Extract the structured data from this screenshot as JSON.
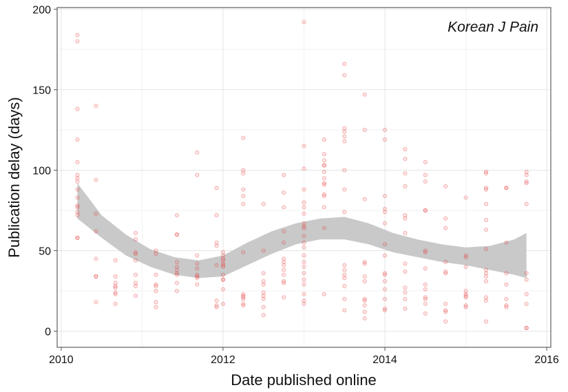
{
  "chart_data": {
    "type": "scatter",
    "annotation": "Korean J Pain",
    "xlabel": "Date published online",
    "ylabel": "Publication delay (days)",
    "xlim": [
      2009.95,
      2016.05
    ],
    "ylim": [
      -10,
      201
    ],
    "x_ticks": [
      2010,
      2012,
      2014,
      2016
    ],
    "y_ticks": [
      0,
      50,
      100,
      150,
      200
    ],
    "grid": true,
    "point_color": "#e8383d",
    "band_color": "#c9c9c9",
    "points": [
      [
        2010.2,
        184
      ],
      [
        2010.2,
        180
      ],
      [
        2010.2,
        138
      ],
      [
        2010.2,
        119
      ],
      [
        2010.2,
        105
      ],
      [
        2010.2,
        97
      ],
      [
        2010.2,
        95
      ],
      [
        2010.2,
        93
      ],
      [
        2010.2,
        88
      ],
      [
        2010.2,
        83
      ],
      [
        2010.2,
        78
      ],
      [
        2010.2,
        77
      ],
      [
        2010.2,
        74
      ],
      [
        2010.2,
        72
      ],
      [
        2010.2,
        58
      ],
      [
        2010.2,
        58
      ],
      [
        2010.43,
        140
      ],
      [
        2010.43,
        94
      ],
      [
        2010.43,
        73
      ],
      [
        2010.43,
        62
      ],
      [
        2010.43,
        45
      ],
      [
        2010.43,
        34
      ],
      [
        2010.43,
        34
      ],
      [
        2010.43,
        18
      ],
      [
        2010.67,
        44
      ],
      [
        2010.67,
        34
      ],
      [
        2010.67,
        30
      ],
      [
        2010.67,
        28
      ],
      [
        2010.67,
        27
      ],
      [
        2010.67,
        24
      ],
      [
        2010.67,
        23
      ],
      [
        2010.67,
        17
      ],
      [
        2010.92,
        61
      ],
      [
        2010.92,
        57
      ],
      [
        2010.92,
        49
      ],
      [
        2010.92,
        48
      ],
      [
        2010.92,
        44
      ],
      [
        2010.92,
        35
      ],
      [
        2010.92,
        30
      ],
      [
        2010.92,
        28
      ],
      [
        2010.92,
        22
      ],
      [
        2011.17,
        50
      ],
      [
        2011.17,
        48
      ],
      [
        2011.17,
        35
      ],
      [
        2011.17,
        29
      ],
      [
        2011.17,
        28
      ],
      [
        2011.17,
        25
      ],
      [
        2011.17,
        18
      ],
      [
        2011.17,
        15
      ],
      [
        2011.43,
        72
      ],
      [
        2011.43,
        60
      ],
      [
        2011.43,
        60
      ],
      [
        2011.43,
        43
      ],
      [
        2011.43,
        40
      ],
      [
        2011.43,
        38
      ],
      [
        2011.43,
        36
      ],
      [
        2011.43,
        35
      ],
      [
        2011.43,
        30
      ],
      [
        2011.43,
        25
      ],
      [
        2011.68,
        111
      ],
      [
        2011.68,
        97
      ],
      [
        2011.68,
        47
      ],
      [
        2011.68,
        42
      ],
      [
        2011.68,
        39
      ],
      [
        2011.68,
        35
      ],
      [
        2011.68,
        34
      ],
      [
        2011.68,
        33
      ],
      [
        2011.68,
        29
      ],
      [
        2011.92,
        89
      ],
      [
        2011.92,
        72
      ],
      [
        2011.92,
        55
      ],
      [
        2011.92,
        53
      ],
      [
        2011.92,
        41
      ],
      [
        2011.92,
        19
      ],
      [
        2011.92,
        16
      ],
      [
        2011.92,
        15
      ],
      [
        2012.0,
        49
      ],
      [
        2012.0,
        47
      ],
      [
        2012.0,
        45
      ],
      [
        2012.0,
        44
      ],
      [
        2012.0,
        42
      ],
      [
        2012.0,
        41
      ],
      [
        2012.0,
        40
      ],
      [
        2012.0,
        35
      ],
      [
        2012.0,
        32
      ],
      [
        2012.0,
        32
      ],
      [
        2012.0,
        26
      ],
      [
        2012.0,
        17
      ],
      [
        2012.25,
        120
      ],
      [
        2012.25,
        100
      ],
      [
        2012.25,
        98
      ],
      [
        2012.25,
        88
      ],
      [
        2012.25,
        84
      ],
      [
        2012.25,
        79
      ],
      [
        2012.25,
        49
      ],
      [
        2012.25,
        23
      ],
      [
        2012.25,
        22
      ],
      [
        2012.25,
        21
      ],
      [
        2012.25,
        20
      ],
      [
        2012.25,
        17
      ],
      [
        2012.25,
        16
      ],
      [
        2012.5,
        79
      ],
      [
        2012.5,
        50
      ],
      [
        2012.5,
        36
      ],
      [
        2012.5,
        31
      ],
      [
        2012.5,
        29
      ],
      [
        2012.5,
        24
      ],
      [
        2012.5,
        22
      ],
      [
        2012.5,
        20
      ],
      [
        2012.5,
        15
      ],
      [
        2012.5,
        10
      ],
      [
        2012.75,
        97
      ],
      [
        2012.75,
        86
      ],
      [
        2012.75,
        77
      ],
      [
        2012.75,
        62
      ],
      [
        2012.75,
        55
      ],
      [
        2012.75,
        45
      ],
      [
        2012.75,
        43
      ],
      [
        2012.75,
        41
      ],
      [
        2012.75,
        38
      ],
      [
        2012.75,
        35
      ],
      [
        2012.75,
        31
      ],
      [
        2012.75,
        30
      ],
      [
        2012.75,
        21
      ],
      [
        2013.0,
        192
      ],
      [
        2013.0,
        115
      ],
      [
        2013.0,
        101
      ],
      [
        2013.0,
        88
      ],
      [
        2013.0,
        80
      ],
      [
        2013.0,
        77
      ],
      [
        2013.0,
        73
      ],
      [
        2013.0,
        67
      ],
      [
        2013.0,
        65
      ],
      [
        2013.0,
        64
      ],
      [
        2013.0,
        59
      ],
      [
        2013.0,
        55
      ],
      [
        2013.0,
        52
      ],
      [
        2013.0,
        47
      ],
      [
        2013.0,
        43
      ],
      [
        2013.0,
        40
      ],
      [
        2013.0,
        36
      ],
      [
        2013.0,
        32
      ],
      [
        2013.0,
        29
      ],
      [
        2013.0,
        23
      ],
      [
        2013.0,
        19
      ],
      [
        2013.0,
        17
      ],
      [
        2013.25,
        119
      ],
      [
        2013.25,
        110
      ],
      [
        2013.25,
        106
      ],
      [
        2013.25,
        103
      ],
      [
        2013.25,
        103
      ],
      [
        2013.25,
        99
      ],
      [
        2013.25,
        95
      ],
      [
        2013.25,
        92
      ],
      [
        2013.25,
        91
      ],
      [
        2013.25,
        85
      ],
      [
        2013.25,
        84
      ],
      [
        2013.25,
        77
      ],
      [
        2013.25,
        64
      ],
      [
        2013.25,
        23
      ],
      [
        2013.5,
        166
      ],
      [
        2013.5,
        159
      ],
      [
        2013.5,
        126
      ],
      [
        2013.5,
        124
      ],
      [
        2013.5,
        121
      ],
      [
        2013.5,
        118
      ],
      [
        2013.5,
        100
      ],
      [
        2013.5,
        88
      ],
      [
        2013.5,
        74
      ],
      [
        2013.5,
        41
      ],
      [
        2013.5,
        38
      ],
      [
        2013.5,
        35
      ],
      [
        2013.5,
        33
      ],
      [
        2013.5,
        28
      ],
      [
        2013.5,
        20
      ],
      [
        2013.5,
        13
      ],
      [
        2013.75,
        147
      ],
      [
        2013.75,
        125
      ],
      [
        2013.75,
        82
      ],
      [
        2013.75,
        43
      ],
      [
        2013.75,
        42
      ],
      [
        2013.75,
        34
      ],
      [
        2013.75,
        31
      ],
      [
        2013.75,
        20
      ],
      [
        2013.75,
        19
      ],
      [
        2013.75,
        16
      ],
      [
        2013.75,
        12
      ],
      [
        2013.75,
        8
      ],
      [
        2014.0,
        125
      ],
      [
        2014.0,
        119
      ],
      [
        2014.0,
        84
      ],
      [
        2014.0,
        76
      ],
      [
        2014.0,
        74
      ],
      [
        2014.0,
        67
      ],
      [
        2014.0,
        54
      ],
      [
        2014.0,
        47
      ],
      [
        2014.0,
        36
      ],
      [
        2014.0,
        35
      ],
      [
        2014.0,
        31
      ],
      [
        2014.0,
        26
      ],
      [
        2014.0,
        20
      ],
      [
        2014.0,
        14
      ],
      [
        2014.0,
        13
      ],
      [
        2014.25,
        113
      ],
      [
        2014.25,
        107
      ],
      [
        2014.25,
        98
      ],
      [
        2014.25,
        90
      ],
      [
        2014.25,
        72
      ],
      [
        2014.25,
        70
      ],
      [
        2014.25,
        61
      ],
      [
        2014.25,
        42
      ],
      [
        2014.25,
        37
      ],
      [
        2014.25,
        27
      ],
      [
        2014.25,
        24
      ],
      [
        2014.25,
        20
      ],
      [
        2014.25,
        14
      ],
      [
        2014.5,
        105
      ],
      [
        2014.5,
        97
      ],
      [
        2014.5,
        93
      ],
      [
        2014.5,
        75
      ],
      [
        2014.5,
        75
      ],
      [
        2014.5,
        50
      ],
      [
        2014.5,
        49
      ],
      [
        2014.5,
        39
      ],
      [
        2014.5,
        29
      ],
      [
        2014.5,
        26
      ],
      [
        2014.5,
        21
      ],
      [
        2014.5,
        20
      ],
      [
        2014.5,
        17
      ],
      [
        2014.5,
        11
      ],
      [
        2014.75,
        90
      ],
      [
        2014.75,
        70
      ],
      [
        2014.75,
        64
      ],
      [
        2014.75,
        43
      ],
      [
        2014.75,
        37
      ],
      [
        2014.75,
        36
      ],
      [
        2014.75,
        17
      ],
      [
        2014.75,
        13
      ],
      [
        2014.75,
        12
      ],
      [
        2014.75,
        6
      ],
      [
        2015.0,
        83
      ],
      [
        2015.0,
        47
      ],
      [
        2015.0,
        46
      ],
      [
        2015.0,
        40
      ],
      [
        2015.0,
        25
      ],
      [
        2015.0,
        23
      ],
      [
        2015.0,
        22
      ],
      [
        2015.0,
        21
      ],
      [
        2015.0,
        16
      ],
      [
        2015.0,
        15
      ],
      [
        2015.25,
        99
      ],
      [
        2015.25,
        98
      ],
      [
        2015.25,
        89
      ],
      [
        2015.25,
        88
      ],
      [
        2015.25,
        79
      ],
      [
        2015.25,
        69
      ],
      [
        2015.25,
        63
      ],
      [
        2015.25,
        51
      ],
      [
        2015.25,
        38
      ],
      [
        2015.25,
        36
      ],
      [
        2015.25,
        34
      ],
      [
        2015.25,
        31
      ],
      [
        2015.25,
        21
      ],
      [
        2015.25,
        19
      ],
      [
        2015.25,
        6
      ],
      [
        2015.5,
        89
      ],
      [
        2015.5,
        89
      ],
      [
        2015.5,
        55
      ],
      [
        2015.5,
        36
      ],
      [
        2015.5,
        29
      ],
      [
        2015.5,
        20
      ],
      [
        2015.5,
        16
      ],
      [
        2015.5,
        15
      ],
      [
        2015.75,
        99
      ],
      [
        2015.75,
        97
      ],
      [
        2015.75,
        93
      ],
      [
        2015.75,
        92
      ],
      [
        2015.75,
        79
      ],
      [
        2015.75,
        36
      ],
      [
        2015.75,
        32
      ],
      [
        2015.75,
        23
      ],
      [
        2015.75,
        17
      ],
      [
        2015.75,
        2
      ],
      [
        2015.75,
        2
      ]
    ],
    "smooth_band": {
      "x": [
        2010.2,
        2010.5,
        2010.8,
        2011.1,
        2011.4,
        2011.7,
        2012.0,
        2012.3,
        2012.6,
        2012.9,
        2013.2,
        2013.5,
        2013.8,
        2014.1,
        2014.4,
        2014.7,
        2015.0,
        2015.3,
        2015.6,
        2015.75
      ],
      "upper": [
        92,
        72,
        60,
        51,
        46,
        44,
        47,
        55,
        62,
        67,
        70,
        71,
        67,
        61,
        57,
        54,
        52,
        53,
        57,
        61
      ],
      "lower": [
        70,
        58,
        47,
        40,
        35,
        33,
        34,
        41,
        48,
        54,
        57,
        57,
        54,
        49,
        46,
        43,
        41,
        38,
        35,
        33
      ]
    }
  }
}
